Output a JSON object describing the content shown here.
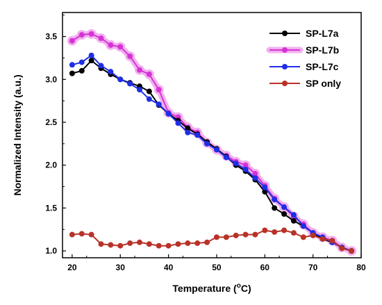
{
  "chart_data": {
    "type": "line",
    "xlabel": "Temperature (",
    "xlabel_unit_sup": "o",
    "xlabel_unit_tail": "C)",
    "ylabel": "Normalized Intensity (a.u.)",
    "xlim": [
      18,
      80
    ],
    "ylim": [
      0.92,
      3.78
    ],
    "x_ticks": [
      20,
      30,
      40,
      50,
      60,
      70,
      80
    ],
    "y_ticks": [
      1.0,
      1.5,
      2.0,
      2.5,
      3.0,
      3.5
    ],
    "y_tick_labels": [
      "1.0",
      "1.5",
      "2.0",
      "2.5",
      "3.0",
      "3.5"
    ],
    "legend_position": "top-right",
    "grid": false,
    "x": [
      20,
      22,
      24,
      26,
      28,
      30,
      32,
      34,
      36,
      38,
      40,
      42,
      44,
      46,
      48,
      50,
      52,
      54,
      56,
      58,
      60,
      62,
      64,
      66,
      68,
      70,
      72,
      74,
      76,
      78
    ],
    "series": [
      {
        "name": "SP-L7a",
        "color": "#000000",
        "values": [
          3.07,
          3.1,
          3.22,
          3.13,
          3.06,
          3.0,
          2.96,
          2.92,
          2.86,
          2.7,
          2.6,
          2.52,
          2.43,
          2.36,
          2.27,
          2.19,
          2.1,
          2.0,
          1.93,
          1.83,
          1.69,
          1.5,
          1.43,
          1.35,
          1.29,
          1.21,
          1.14,
          1.1,
          1.04,
          1.0
        ]
      },
      {
        "name": "SP-L7b",
        "color": "#d633d6",
        "halo": "#f2b0ee",
        "values": [
          3.45,
          3.52,
          3.53,
          3.48,
          3.4,
          3.38,
          3.27,
          3.11,
          3.06,
          2.88,
          2.61,
          2.56,
          2.44,
          2.38,
          2.26,
          2.18,
          2.11,
          2.04,
          2.0,
          1.9,
          1.76,
          1.61,
          1.51,
          1.4,
          1.31,
          1.21,
          1.16,
          1.12,
          1.04,
          1.0
        ]
      },
      {
        "name": "SP-L7c",
        "color": "#1f2ee6",
        "values": [
          3.17,
          3.2,
          3.28,
          3.16,
          3.09,
          3.0,
          2.95,
          2.88,
          2.77,
          2.71,
          2.6,
          2.49,
          2.38,
          2.35,
          2.25,
          2.18,
          2.09,
          2.02,
          1.95,
          1.85,
          1.74,
          1.6,
          1.51,
          1.42,
          1.29,
          1.21,
          1.16,
          1.1,
          1.04,
          1.0
        ]
      },
      {
        "name": "SP only",
        "color": "#b83228",
        "values": [
          1.19,
          1.2,
          1.19,
          1.08,
          1.07,
          1.06,
          1.09,
          1.1,
          1.08,
          1.06,
          1.06,
          1.08,
          1.09,
          1.09,
          1.1,
          1.16,
          1.16,
          1.18,
          1.19,
          1.19,
          1.24,
          1.22,
          1.24,
          1.21,
          1.16,
          1.18,
          1.14,
          1.12,
          1.03,
          1.0
        ]
      }
    ]
  }
}
